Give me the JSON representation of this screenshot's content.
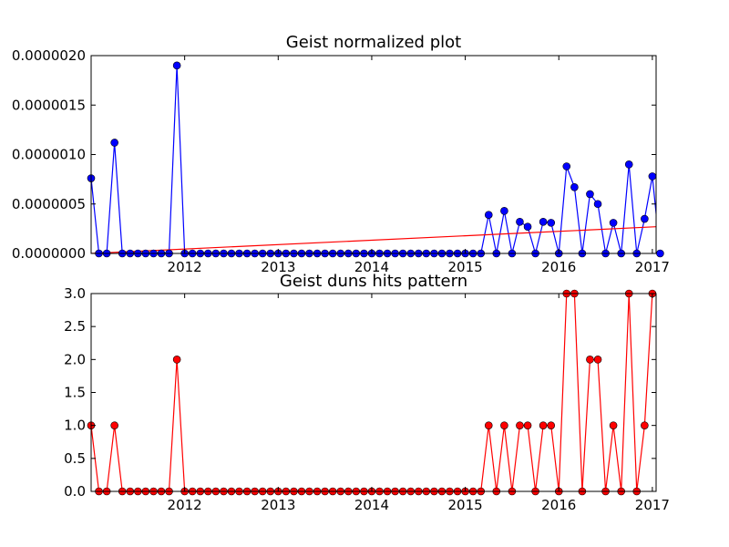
{
  "chart_data": [
    {
      "type": "line",
      "title": "Geist normalized plot",
      "xlabel": "",
      "ylabel": "",
      "xlim": [
        2011.0,
        2017.04
      ],
      "ylim": [
        0,
        2e-06
      ],
      "x_tick_values": [
        2012,
        2013,
        2014,
        2015,
        2016,
        2017
      ],
      "x_tick_labels": [
        "2012",
        "2013",
        "2014",
        "2015",
        "2016",
        "2017"
      ],
      "y_tick_values": [
        0,
        5e-07,
        1e-06,
        1.5e-06,
        2e-06
      ],
      "y_tick_labels": [
        "0.0000000",
        "0.0000005",
        "0.0000010",
        "0.0000015",
        "0.0000020"
      ],
      "grid": false,
      "series": [
        {
          "color": "#0000ff",
          "marker_color": "#0000ff",
          "x": [
            2011.0,
            2011.083,
            2011.167,
            2011.25,
            2011.333,
            2011.417,
            2011.5,
            2011.583,
            2011.667,
            2011.75,
            2011.833,
            2011.917,
            2012.0,
            2012.083,
            2012.167,
            2012.25,
            2012.333,
            2012.417,
            2012.5,
            2012.583,
            2012.667,
            2012.75,
            2012.833,
            2012.917,
            2013.0,
            2013.083,
            2013.167,
            2013.25,
            2013.333,
            2013.417,
            2013.5,
            2013.583,
            2013.667,
            2013.75,
            2013.833,
            2013.917,
            2014.0,
            2014.083,
            2014.167,
            2014.25,
            2014.333,
            2014.417,
            2014.5,
            2014.583,
            2014.667,
            2014.75,
            2014.833,
            2014.917,
            2015.0,
            2015.083,
            2015.167,
            2015.25,
            2015.333,
            2015.417,
            2015.5,
            2015.583,
            2015.667,
            2015.75,
            2015.833,
            2015.917,
            2016.0,
            2016.083,
            2016.167,
            2016.25,
            2016.333,
            2016.417,
            2016.5,
            2016.583,
            2016.667,
            2016.75,
            2016.833,
            2016.917,
            2017.0,
            2017.083
          ],
          "y": [
            7.6e-07,
            0,
            0,
            1.12e-06,
            0,
            0,
            0,
            0,
            0,
            0,
            0,
            1.9e-06,
            0,
            0,
            0,
            0,
            0,
            0,
            0,
            0,
            0,
            0,
            0,
            0,
            0,
            0,
            0,
            0,
            0,
            0,
            0,
            0,
            0,
            0,
            0,
            0,
            0,
            0,
            0,
            0,
            0,
            0,
            0,
            0,
            0,
            0,
            0,
            0,
            0,
            0,
            0,
            3.9e-07,
            0,
            4.3e-07,
            0,
            3.2e-07,
            2.7e-07,
            0,
            3.2e-07,
            3.1e-07,
            0,
            8.8e-07,
            6.7e-07,
            0,
            6e-07,
            5e-07,
            0,
            3.1e-07,
            0,
            9e-07,
            0,
            3.5e-07,
            7.8e-07,
            0
          ]
        },
        {
          "color": "#ff0000",
          "x": [
            2011.0,
            2017.04
          ],
          "y": [
            0.0,
            2.7e-07
          ]
        }
      ]
    },
    {
      "type": "line",
      "title": "Geist duns hits pattern",
      "xlabel": "",
      "ylabel": "",
      "xlim": [
        2011.0,
        2017.04
      ],
      "ylim": [
        0,
        3
      ],
      "x_tick_values": [
        2012,
        2013,
        2014,
        2015,
        2016,
        2017
      ],
      "x_tick_labels": [
        "2012",
        "2013",
        "2014",
        "2015",
        "2016",
        "2017"
      ],
      "y_tick_values": [
        0,
        0.5,
        1,
        1.5,
        2,
        2.5,
        3
      ],
      "y_tick_labels": [
        "0.0",
        "0.5",
        "1.0",
        "1.5",
        "2.0",
        "2.5",
        "3.0"
      ],
      "grid": false,
      "series": [
        {
          "color": "#ff0000",
          "marker_color": "#ff0000",
          "x": [
            2011.0,
            2011.083,
            2011.167,
            2011.25,
            2011.333,
            2011.417,
            2011.5,
            2011.583,
            2011.667,
            2011.75,
            2011.833,
            2011.917,
            2012.0,
            2012.083,
            2012.167,
            2012.25,
            2012.333,
            2012.417,
            2012.5,
            2012.583,
            2012.667,
            2012.75,
            2012.833,
            2012.917,
            2013.0,
            2013.083,
            2013.167,
            2013.25,
            2013.333,
            2013.417,
            2013.5,
            2013.583,
            2013.667,
            2013.75,
            2013.833,
            2013.917,
            2014.0,
            2014.083,
            2014.167,
            2014.25,
            2014.333,
            2014.417,
            2014.5,
            2014.583,
            2014.667,
            2014.75,
            2014.833,
            2014.917,
            2015.0,
            2015.083,
            2015.167,
            2015.25,
            2015.333,
            2015.417,
            2015.5,
            2015.583,
            2015.667,
            2015.75,
            2015.833,
            2015.917,
            2016.0,
            2016.083,
            2016.167,
            2016.25,
            2016.333,
            2016.417,
            2016.5,
            2016.583,
            2016.667,
            2016.75,
            2016.833,
            2016.917,
            2017.0
          ],
          "y": [
            1,
            0,
            0,
            1,
            0,
            0,
            0,
            0,
            0,
            0,
            0,
            2,
            0,
            0,
            0,
            0,
            0,
            0,
            0,
            0,
            0,
            0,
            0,
            0,
            0,
            0,
            0,
            0,
            0,
            0,
            0,
            0,
            0,
            0,
            0,
            0,
            0,
            0,
            0,
            0,
            0,
            0,
            0,
            0,
            0,
            0,
            0,
            0,
            0,
            0,
            0,
            1,
            0,
            1,
            0,
            1,
            1,
            0,
            1,
            1,
            0,
            3,
            3,
            0,
            2,
            2,
            0,
            1,
            0,
            3,
            0,
            1,
            3
          ]
        }
      ]
    }
  ]
}
